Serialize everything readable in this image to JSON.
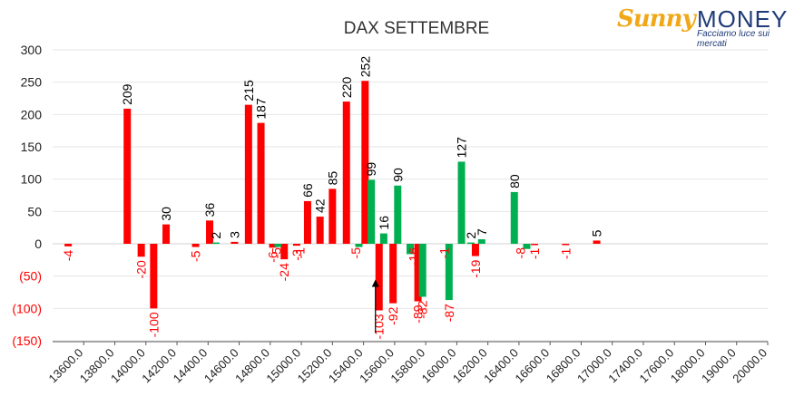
{
  "logo": {
    "brand_sunny": "Sunny",
    "brand_money": "MONEY",
    "tagline": "Facciamo luce sui mercati"
  },
  "colors": {
    "red": "#ff0000",
    "green": "#00b050",
    "negative_label": "#ff0000",
    "positive_label": "#000000",
    "grid": "#e6e6e6",
    "axis": "#595959"
  },
  "chart_data": {
    "type": "bar",
    "title": "DAX SETTEMBRE",
    "xlabel": "",
    "ylabel": "",
    "ylim": [
      -150,
      300
    ],
    "yticks": [
      "300",
      "250",
      "200",
      "150",
      "100",
      "50",
      "0",
      "(50)",
      "(100)",
      "(150)"
    ],
    "ytick_values": [
      300,
      250,
      200,
      150,
      100,
      50,
      0,
      -50,
      -100,
      -150
    ],
    "grid": true,
    "legend": "none",
    "categories": [
      "13600.0",
      "13800.0",
      "14000.0",
      "14200.0",
      "14400.0",
      "14600.0",
      "14800.0",
      "15000.0",
      "15200.0",
      "15400.0",
      "15600.0",
      "15800.0",
      "16000.0",
      "16200.0",
      "16400.0",
      "16600.0",
      "16800.0",
      "17000.0",
      "17400.0",
      "17600.0",
      "18000.0",
      "19000.0",
      "20000.0"
    ],
    "series": [
      {
        "color": "red",
        "bars": [
          {
            "pos": 0.5,
            "value": -4,
            "label": "-4"
          },
          {
            "pos": 2.4,
            "value": 209,
            "label": "209"
          },
          {
            "pos": 2.85,
            "value": -20,
            "label": "-20"
          },
          {
            "pos": 3.25,
            "value": -100,
            "label": "-100"
          },
          {
            "pos": 3.65,
            "value": 30,
            "label": "30"
          },
          {
            "pos": 4.6,
            "value": -5,
            "label": "-5"
          },
          {
            "pos": 5.05,
            "value": 36,
            "label": "36"
          },
          {
            "pos": 5.85,
            "value": 3,
            "label": "3"
          },
          {
            "pos": 6.3,
            "value": 215,
            "label": "215"
          },
          {
            "pos": 6.7,
            "value": 187,
            "label": "187"
          },
          {
            "pos": 7.08,
            "value": -6,
            "label": "-6"
          },
          {
            "pos": 7.45,
            "value": -24,
            "label": "-24"
          },
          {
            "pos": 7.85,
            "value": -3,
            "label": "-3"
          },
          {
            "pos": 8.2,
            "value": 66,
            "label": "66"
          },
          {
            "pos": 8.6,
            "value": 42,
            "label": "42"
          },
          {
            "pos": 9.0,
            "value": 85,
            "label": "85"
          },
          {
            "pos": 9.45,
            "value": 220,
            "label": "220"
          },
          {
            "pos": 10.05,
            "value": 252,
            "label": "252"
          },
          {
            "pos": 10.5,
            "value": -103,
            "label": "-103"
          },
          {
            "pos": 10.95,
            "value": -92,
            "label": "-92"
          },
          {
            "pos": 11.75,
            "value": -89,
            "label": "-89"
          },
          {
            "pos": 13.6,
            "value": -19,
            "label": "-19"
          },
          {
            "pos": 15.5,
            "value": -1,
            "label": "-1"
          },
          {
            "pos": 16.5,
            "value": -1,
            "label": "-1"
          },
          {
            "pos": 17.5,
            "value": 5,
            "label": "5"
          }
        ],
        "extra_labels": [
          {
            "pos": 7.2,
            "label": "-5"
          },
          {
            "pos": 7.95,
            "label": "-1"
          },
          {
            "pos": 9.75,
            "label": "-5"
          },
          {
            "pos": 11.6,
            "label": "-16"
          },
          {
            "pos": 12.6,
            "label": "-1"
          },
          {
            "pos": 15.05,
            "label": "-8"
          }
        ]
      },
      {
        "color": "green",
        "bars": [
          {
            "pos": 5.25,
            "value": 2,
            "label": "2"
          },
          {
            "pos": 7.25,
            "value": -5,
            "label": ""
          },
          {
            "pos": 9.85,
            "value": -5,
            "label": ""
          },
          {
            "pos": 10.25,
            "value": 99,
            "label": "99"
          },
          {
            "pos": 10.65,
            "value": 16,
            "label": "16"
          },
          {
            "pos": 11.1,
            "value": 90,
            "label": "90"
          },
          {
            "pos": 11.5,
            "value": -16,
            "label": ""
          },
          {
            "pos": 11.9,
            "value": -82,
            "label": "-82"
          },
          {
            "pos": 12.75,
            "value": -87,
            "label": "-87"
          },
          {
            "pos": 13.15,
            "value": 127,
            "label": "127"
          },
          {
            "pos": 13.45,
            "value": 2,
            "label": "2"
          },
          {
            "pos": 13.8,
            "value": 7,
            "label": "7"
          },
          {
            "pos": 14.85,
            "value": 80,
            "label": "80"
          },
          {
            "pos": 15.25,
            "value": -8,
            "label": ""
          }
        ]
      }
    ],
    "annotations": [
      {
        "type": "marker",
        "pos": 10.5,
        "value": -75
      }
    ]
  }
}
